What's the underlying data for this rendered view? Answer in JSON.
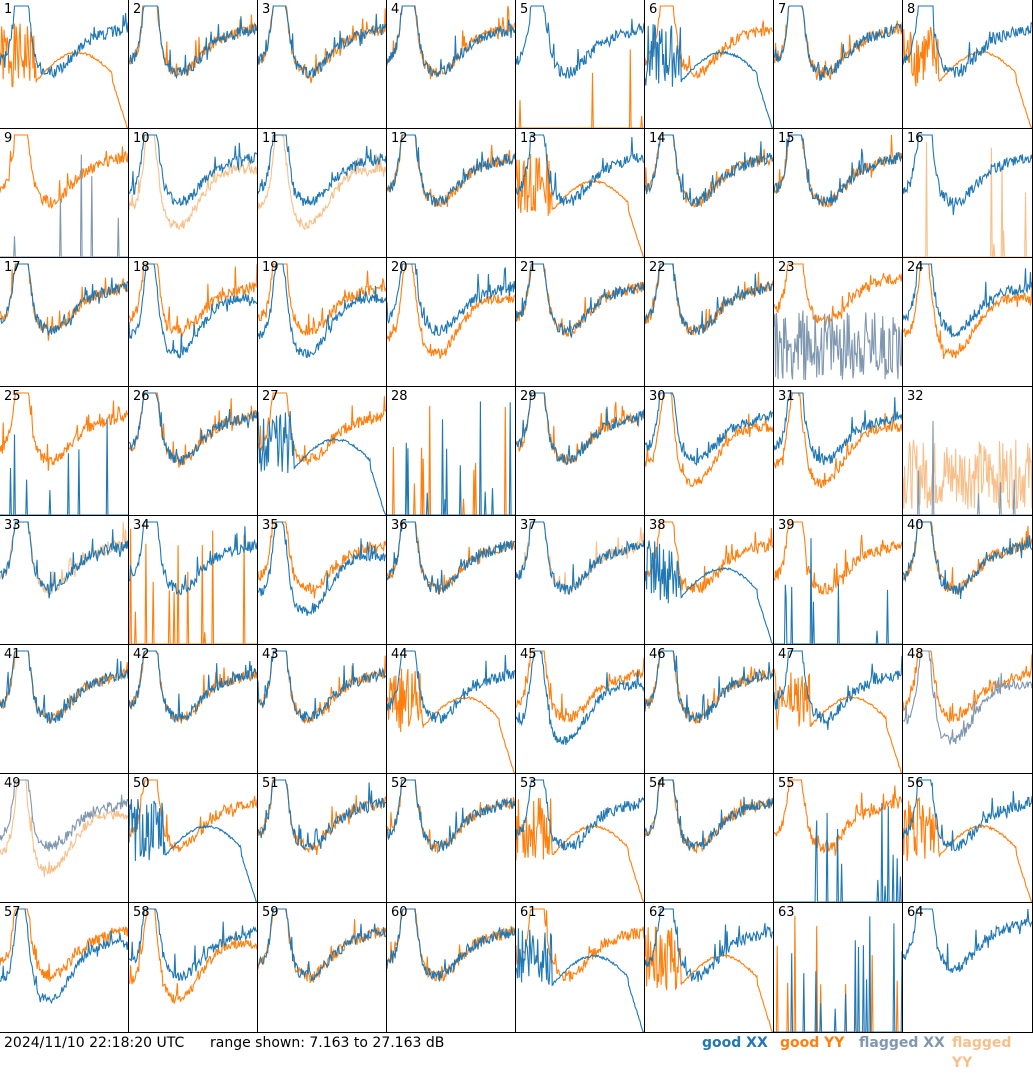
{
  "footer": {
    "timestamp": "2024/11/10 22:18:20 UTC",
    "range_text": "range shown: 7.163 to 27.163 dB"
  },
  "legend": [
    {
      "label": "good XX",
      "color": "#1f77b4"
    },
    {
      "label": "good YY",
      "color": "#ff7f0e"
    },
    {
      "label": "flagged XX",
      "color": "#7f97b0"
    },
    {
      "label": "flagged YY",
      "color": "#f7c08a"
    }
  ],
  "chart_data": {
    "type": "line",
    "grid": {
      "rows": 8,
      "cols": 8
    },
    "y_range_db": [
      7.163,
      27.163
    ],
    "tiles": [
      {
        "id": "1",
        "xx": "good",
        "yy": "good",
        "shape_xx": "normal",
        "shape_yy": "dropout"
      },
      {
        "id": "2",
        "xx": "good",
        "yy": "good",
        "shape_xx": "normal",
        "shape_yy": "normal"
      },
      {
        "id": "3",
        "xx": "good",
        "yy": "good",
        "shape_xx": "normal",
        "shape_yy": "normal"
      },
      {
        "id": "4",
        "xx": "good",
        "yy": "good",
        "shape_xx": "normal",
        "shape_yy": "normal"
      },
      {
        "id": "5",
        "xx": "good",
        "yy": "good",
        "shape_xx": "normal",
        "shape_yy": "dead"
      },
      {
        "id": "6",
        "xx": "good",
        "yy": "good",
        "shape_xx": "dropout",
        "shape_yy": "normal"
      },
      {
        "id": "7",
        "xx": "good",
        "yy": "good",
        "shape_xx": "normal",
        "shape_yy": "normal"
      },
      {
        "id": "8",
        "xx": "good",
        "yy": "good",
        "shape_xx": "normal",
        "shape_yy": "dropout"
      },
      {
        "id": "9",
        "xx": "flagged",
        "yy": "good",
        "shape_xx": "dead",
        "shape_yy": "normal"
      },
      {
        "id": "10",
        "xx": "good",
        "yy": "flagged",
        "shape_xx": "normal",
        "shape_yy": "low"
      },
      {
        "id": "11",
        "xx": "good",
        "yy": "flagged",
        "shape_xx": "normal",
        "shape_yy": "low"
      },
      {
        "id": "12",
        "xx": "good",
        "yy": "good",
        "shape_xx": "normal",
        "shape_yy": "normal"
      },
      {
        "id": "13",
        "xx": "good",
        "yy": "good",
        "shape_xx": "normal",
        "shape_yy": "dropout"
      },
      {
        "id": "14",
        "xx": "good",
        "yy": "good",
        "shape_xx": "normal",
        "shape_yy": "normal"
      },
      {
        "id": "15",
        "xx": "good",
        "yy": "good",
        "shape_xx": "normal",
        "shape_yy": "normal"
      },
      {
        "id": "16",
        "xx": "good",
        "yy": "flagged",
        "shape_xx": "normal",
        "shape_yy": "dead"
      },
      {
        "id": "17",
        "xx": "good",
        "yy": "good",
        "shape_xx": "normal",
        "shape_yy": "normal"
      },
      {
        "id": "18",
        "xx": "good",
        "yy": "good",
        "shape_xx": "low",
        "shape_yy": "normal"
      },
      {
        "id": "19",
        "xx": "good",
        "yy": "good",
        "shape_xx": "low",
        "shape_yy": "normal"
      },
      {
        "id": "20",
        "xx": "good",
        "yy": "good",
        "shape_xx": "normal",
        "shape_yy": "low"
      },
      {
        "id": "21",
        "xx": "good",
        "yy": "good",
        "shape_xx": "normal",
        "shape_yy": "normal"
      },
      {
        "id": "22",
        "xx": "good",
        "yy": "good",
        "shape_xx": "normal",
        "shape_yy": "normal"
      },
      {
        "id": "23",
        "xx": "flagged",
        "yy": "good",
        "shape_xx": "noisy",
        "shape_yy": "high"
      },
      {
        "id": "24",
        "xx": "good",
        "yy": "good",
        "shape_xx": "normal",
        "shape_yy": "low"
      },
      {
        "id": "25",
        "xx": "good",
        "yy": "good",
        "shape_xx": "dead",
        "shape_yy": "normal"
      },
      {
        "id": "26",
        "xx": "good",
        "yy": "good",
        "shape_xx": "normal",
        "shape_yy": "normal"
      },
      {
        "id": "27",
        "xx": "good",
        "yy": "good",
        "shape_xx": "dropout",
        "shape_yy": "normal"
      },
      {
        "id": "28",
        "xx": "good",
        "yy": "good",
        "shape_xx": "dead",
        "shape_yy": "dead"
      },
      {
        "id": "29",
        "xx": "good",
        "yy": "good",
        "shape_xx": "normal",
        "shape_yy": "normal"
      },
      {
        "id": "30",
        "xx": "good",
        "yy": "good",
        "shape_xx": "normal",
        "shape_yy": "low"
      },
      {
        "id": "31",
        "xx": "good",
        "yy": "good",
        "shape_xx": "normal",
        "shape_yy": "low"
      },
      {
        "id": "32",
        "xx": "flagged",
        "yy": "flagged",
        "shape_xx": "dead",
        "shape_yy": "noisy"
      },
      {
        "id": "33",
        "xx": "good",
        "yy": "flagged",
        "shape_xx": "normal",
        "shape_yy": "normal"
      },
      {
        "id": "34",
        "xx": "good",
        "yy": "good",
        "shape_xx": "normal",
        "shape_yy": "dead"
      },
      {
        "id": "35",
        "xx": "good",
        "yy": "good",
        "shape_xx": "low",
        "shape_yy": "normal"
      },
      {
        "id": "36",
        "xx": "good",
        "yy": "good",
        "shape_xx": "normal",
        "shape_yy": "normal"
      },
      {
        "id": "37",
        "xx": "good",
        "yy": "flagged",
        "shape_xx": "normal",
        "shape_yy": "normal"
      },
      {
        "id": "38",
        "xx": "good",
        "yy": "good",
        "shape_xx": "dropout",
        "shape_yy": "normal"
      },
      {
        "id": "39",
        "xx": "good",
        "yy": "good",
        "shape_xx": "dead",
        "shape_yy": "normal"
      },
      {
        "id": "40",
        "xx": "good",
        "yy": "good",
        "shape_xx": "normal",
        "shape_yy": "normal"
      },
      {
        "id": "41",
        "xx": "good",
        "yy": "good",
        "shape_xx": "normal",
        "shape_yy": "normal"
      },
      {
        "id": "42",
        "xx": "good",
        "yy": "good",
        "shape_xx": "normal",
        "shape_yy": "normal"
      },
      {
        "id": "43",
        "xx": "good",
        "yy": "good",
        "shape_xx": "normal",
        "shape_yy": "normal"
      },
      {
        "id": "44",
        "xx": "good",
        "yy": "good",
        "shape_xx": "normal",
        "shape_yy": "dropout"
      },
      {
        "id": "45",
        "xx": "good",
        "yy": "good",
        "shape_xx": "low",
        "shape_yy": "normal"
      },
      {
        "id": "46",
        "xx": "good",
        "yy": "good",
        "shape_xx": "normal",
        "shape_yy": "normal"
      },
      {
        "id": "47",
        "xx": "good",
        "yy": "good",
        "shape_xx": "normal",
        "shape_yy": "dropout"
      },
      {
        "id": "48",
        "xx": "flagged",
        "yy": "good",
        "shape_xx": "low",
        "shape_yy": "normal"
      },
      {
        "id": "49",
        "xx": "flagged",
        "yy": "flagged",
        "shape_xx": "normal",
        "shape_yy": "low"
      },
      {
        "id": "50",
        "xx": "good",
        "yy": "good",
        "shape_xx": "dropout",
        "shape_yy": "normal"
      },
      {
        "id": "51",
        "xx": "good",
        "yy": "good",
        "shape_xx": "normal",
        "shape_yy": "normal"
      },
      {
        "id": "52",
        "xx": "good",
        "yy": "good",
        "shape_xx": "normal",
        "shape_yy": "normal"
      },
      {
        "id": "53",
        "xx": "good",
        "yy": "good",
        "shape_xx": "normal",
        "shape_yy": "dropout"
      },
      {
        "id": "54",
        "xx": "good",
        "yy": "good",
        "shape_xx": "normal",
        "shape_yy": "normal"
      },
      {
        "id": "55",
        "xx": "good",
        "yy": "good",
        "shape_xx": "dead",
        "shape_yy": "normal"
      },
      {
        "id": "56",
        "xx": "good",
        "yy": "good",
        "shape_xx": "normal",
        "shape_yy": "dropout"
      },
      {
        "id": "57",
        "xx": "good",
        "yy": "good",
        "shape_xx": "low",
        "shape_yy": "normal"
      },
      {
        "id": "58",
        "xx": "good",
        "yy": "good",
        "shape_xx": "normal",
        "shape_yy": "low"
      },
      {
        "id": "59",
        "xx": "good",
        "yy": "good",
        "shape_xx": "normal",
        "shape_yy": "normal"
      },
      {
        "id": "60",
        "xx": "good",
        "yy": "good",
        "shape_xx": "normal",
        "shape_yy": "normal"
      },
      {
        "id": "61",
        "xx": "good",
        "yy": "good",
        "shape_xx": "dropout",
        "shape_yy": "normal"
      },
      {
        "id": "62",
        "xx": "good",
        "yy": "good",
        "shape_xx": "normal",
        "shape_yy": "dropout"
      },
      {
        "id": "63",
        "xx": "good",
        "yy": "good",
        "shape_xx": "dead",
        "shape_yy": "dead"
      },
      {
        "id": "64",
        "xx": "good",
        "yy": "good",
        "shape_xx": "high",
        "shape_yy": "none"
      }
    ]
  }
}
